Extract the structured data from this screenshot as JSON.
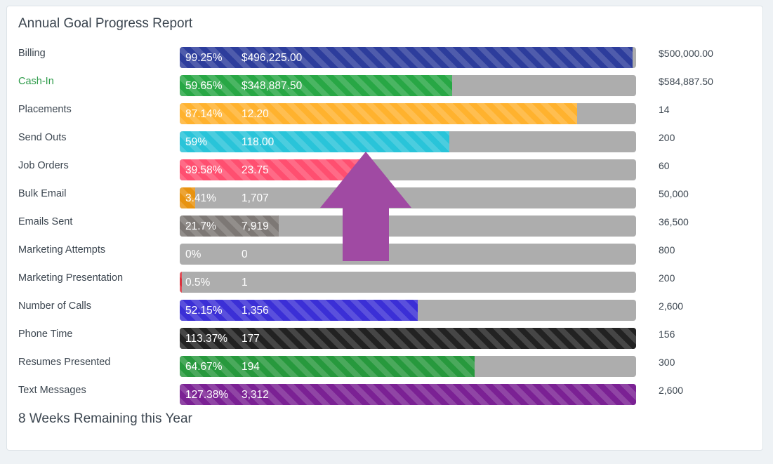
{
  "report": {
    "title": "Annual Goal Progress Report",
    "footer": "8 Weeks Remaining this Year",
    "rows": [
      {
        "label": "Billing",
        "pct_text": "99.25%",
        "value": "$496,225.00",
        "goal": "$500,000.00",
        "fraction": 0.9925,
        "color": "#2d3d9c"
      },
      {
        "label": "Cash-In",
        "pct_text": "59.65%",
        "value": "$348,887.50",
        "goal": "$584,887.50",
        "fraction": 0.5965,
        "color": "#28a745"
      },
      {
        "label": "Placements",
        "pct_text": "87.14%",
        "value": "12.20",
        "goal": "14",
        "fraction": 0.8714,
        "color": "#ffb22e"
      },
      {
        "label": "Send Outs",
        "pct_text": "59%",
        "value": "118.00",
        "goal": "200",
        "fraction": 0.59,
        "color": "#29c4d9"
      },
      {
        "label": "Job Orders",
        "pct_text": "39.58%",
        "value": "23.75",
        "goal": "60",
        "fraction": 0.3958,
        "color": "#ff4f70"
      },
      {
        "label": "Bulk Email",
        "pct_text": "3.41%",
        "value": "1,707",
        "goal": "50,000",
        "fraction": 0.0341,
        "color": "#e89310"
      },
      {
        "label": "Emails Sent",
        "pct_text": "21.7%",
        "value": "7,919",
        "goal": "36,500",
        "fraction": 0.217,
        "color": "#7d7875"
      },
      {
        "label": "Marketing Attempts",
        "pct_text": "0%",
        "value": "0",
        "goal": "800",
        "fraction": 0.0,
        "color": "#7d7875"
      },
      {
        "label": "Marketing Presentation",
        "pct_text": "0.5%",
        "value": "1",
        "goal": "200",
        "fraction": 0.005,
        "color": "#d9313d"
      },
      {
        "label": "Number of Calls",
        "pct_text": "52.15%",
        "value": "1,356",
        "goal": "2,600",
        "fraction": 0.5215,
        "color": "#3b2fd6"
      },
      {
        "label": "Phone Time",
        "pct_text": "113.37%",
        "value": "177",
        "goal": "156",
        "fraction": 1.0,
        "color": "#222222"
      },
      {
        "label": "Resumes Presented",
        "pct_text": "64.67%",
        "value": "194",
        "goal": "300",
        "fraction": 0.6467,
        "color": "#27993d"
      },
      {
        "label": "Text Messages",
        "pct_text": "127.38%",
        "value": "3,312",
        "goal": "2,600",
        "fraction": 1.0,
        "color": "#7b2194"
      }
    ]
  },
  "overlay": {
    "icon": "up-arrow-icon",
    "color": "#a04aa3"
  }
}
